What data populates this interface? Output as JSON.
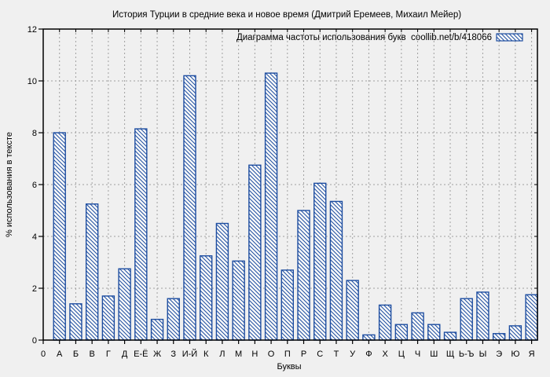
{
  "title": "История Турции в средние века и новое время (Дмитрий Еремеев, Михаил Мейер)",
  "legend": {
    "label": "Диаграмма частоты использования букв  coollib.net/b/418066",
    "swatch": "blue-diagonal-hatch"
  },
  "colors": {
    "background": "#f0f0f0",
    "bar_stroke": "#1d4da0",
    "bar_fill": "#fafafa",
    "grid": "#a0a0a0",
    "axis": "#000000",
    "text": "#000000"
  },
  "chart_data": {
    "type": "bar",
    "title": "История Турции в средние века и новое время (Дмитрий Еремеев, Михаил Мейер)",
    "xlabel": "Буквы",
    "ylabel": "% использования в тексте",
    "ylim": [
      0,
      12
    ],
    "yticks": [
      0,
      2,
      4,
      6,
      8,
      10,
      12
    ],
    "x_origin_label": "0",
    "grid": true,
    "legend_position": "top-right",
    "hatch": "diagonal-backslash",
    "categories": [
      "А",
      "Б",
      "В",
      "Г",
      "Д",
      "Е-Ё",
      "Ж",
      "З",
      "И-Й",
      "К",
      "Л",
      "М",
      "Н",
      "О",
      "П",
      "Р",
      "С",
      "Т",
      "У",
      "Ф",
      "Х",
      "Ц",
      "Ч",
      "Ш",
      "Щ",
      "Ь-Ъ",
      "Ы",
      "Э",
      "Ю",
      "Я"
    ],
    "values": [
      8.0,
      1.4,
      5.25,
      1.7,
      2.75,
      8.15,
      0.8,
      1.6,
      10.2,
      3.25,
      4.5,
      3.05,
      6.75,
      10.3,
      2.7,
      5.0,
      6.05,
      5.35,
      2.3,
      0.2,
      1.35,
      0.6,
      1.05,
      0.6,
      0.3,
      1.6,
      1.85,
      0.25,
      0.55,
      1.75
    ]
  }
}
